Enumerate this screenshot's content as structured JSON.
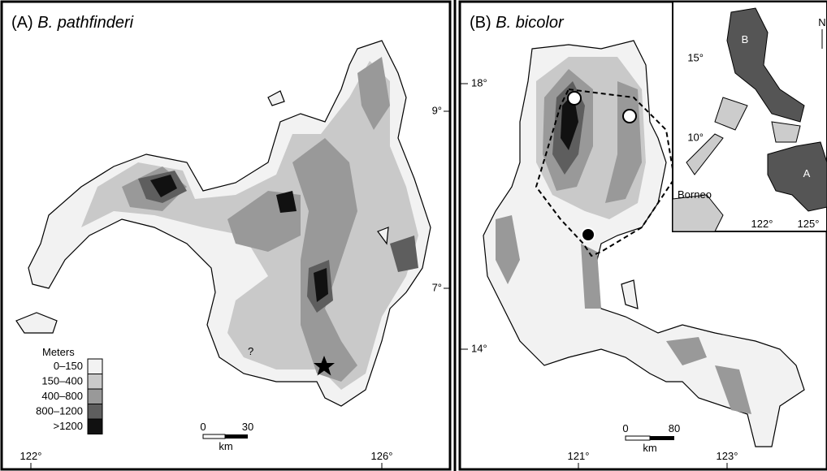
{
  "panel_a": {
    "label": "(A)",
    "species": "B. pathfinderi",
    "axis": {
      "bottom": [
        "122°",
        "126°"
      ],
      "right": [
        "9°",
        "7°"
      ]
    },
    "unknown_marker": "?",
    "legend": {
      "title": "Meters",
      "items": [
        {
          "label": "0–150",
          "color": "#f2f2f2"
        },
        {
          "label": "150–400",
          "color": "#c9c9c9"
        },
        {
          "label": "400–800",
          "color": "#999999"
        },
        {
          "label": "800–1200",
          "color": "#5e5e5e"
        },
        {
          "label": ">1200",
          "color": "#111111"
        }
      ]
    },
    "scale": {
      "start": "0",
      "end": "30",
      "unit": "km"
    }
  },
  "panel_b": {
    "label": "(B)",
    "species": "B. bicolor",
    "axis": {
      "left": [
        "18°",
        "14°"
      ],
      "bottom": [
        "121°",
        "123°"
      ]
    },
    "scale": {
      "start": "0",
      "end": "80",
      "unit": "km"
    },
    "inset": {
      "left": [
        "15°",
        "10°"
      ],
      "bottom": [
        "122°",
        "125°"
      ],
      "region_b": "B",
      "region_a": "A",
      "borneo": "Borneo",
      "north": "N"
    }
  }
}
